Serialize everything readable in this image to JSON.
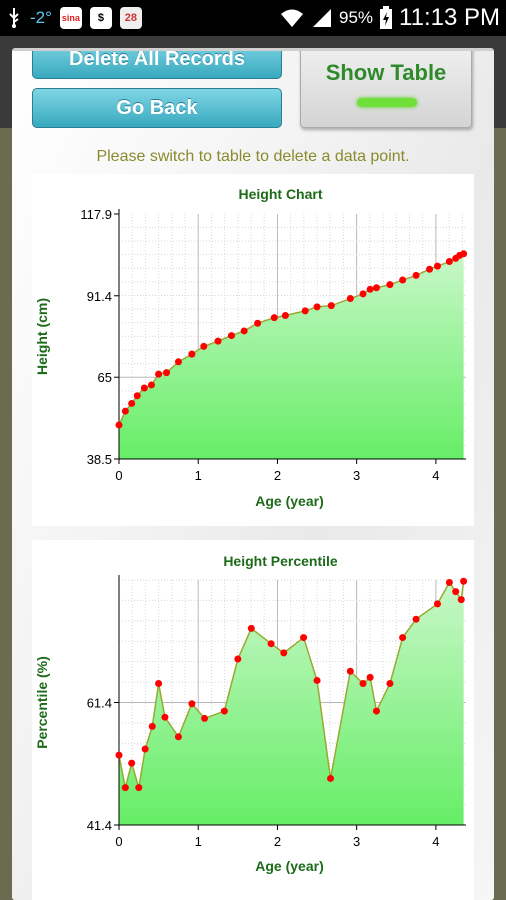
{
  "status_bar": {
    "temperature": "-2°",
    "battery": "95%",
    "time": "11:13 PM",
    "icons": [
      "usb-icon",
      "weather-icon",
      "sina-icon",
      "dollar-icon",
      "calendar-icon",
      "wifi-icon",
      "signal-icon",
      "battery-icon"
    ],
    "calendar_day": "28"
  },
  "dialog": {
    "delete_all_label": "Delete All Records",
    "go_back_label": "Go Back",
    "show_table_label": "Show Table",
    "hint": "Please switch to table to delete a data point."
  },
  "chart_data": [
    {
      "type": "area",
      "title": "Height Chart",
      "xlabel": "Age (year)",
      "ylabel": "Height (cm)",
      "xlim": [
        0,
        4.38
      ],
      "ylim": [
        38.5,
        117.9
      ],
      "x_ticks": [
        "0",
        "1",
        "2",
        "3",
        "4"
      ],
      "y_ticks": [
        "38.5",
        "65",
        "91.4",
        "117.9"
      ],
      "grid": true,
      "colors": {
        "fill_top": "#c8f7c8",
        "fill_bottom": "#66ee66",
        "line": "#99aa33",
        "point": "#ff0000"
      },
      "x": [
        0,
        0.08,
        0.16,
        0.23,
        0.32,
        0.41,
        0.5,
        0.6,
        0.75,
        0.92,
        1.07,
        1.25,
        1.42,
        1.58,
        1.75,
        1.96,
        2.1,
        2.35,
        2.5,
        2.68,
        2.92,
        3.08,
        3.17,
        3.25,
        3.42,
        3.58,
        3.75,
        3.92,
        4.02,
        4.17,
        4.25,
        4.3,
        4.35
      ],
      "y": [
        49.5,
        54,
        56.5,
        59,
        61.5,
        62.5,
        66,
        66.5,
        70,
        72.5,
        75,
        76.7,
        78.5,
        80,
        82.5,
        84.3,
        85,
        86.5,
        87.8,
        88.2,
        90.5,
        92,
        93.5,
        94,
        95,
        96.5,
        98,
        100,
        101,
        102.5,
        103.5,
        104.5,
        105
      ]
    },
    {
      "type": "area",
      "title": "Height Percentile",
      "xlabel": "Age (year)",
      "ylabel": "Percentile (%)",
      "xlim": [
        0,
        4.38
      ],
      "ylim": [
        41.4,
        81.4
      ],
      "x_ticks": [
        "0",
        "1",
        "2",
        "3",
        "4"
      ],
      "y_ticks": [
        "41.4",
        "61.4"
      ],
      "grid": true,
      "colors": {
        "fill_top": "#c8f7c8",
        "fill_bottom": "#66ee66",
        "line": "#99aa33",
        "point": "#ff0000"
      },
      "x": [
        0,
        0.08,
        0.16,
        0.25,
        0.33,
        0.42,
        0.5,
        0.58,
        0.75,
        0.92,
        1.08,
        1.33,
        1.5,
        1.67,
        1.92,
        2.08,
        2.33,
        2.5,
        2.67,
        2.92,
        3.08,
        3.17,
        3.25,
        3.42,
        3.58,
        3.75,
        4.02,
        4.17,
        4.25,
        4.32,
        4.35
      ],
      "y": [
        52.8,
        47.5,
        51.5,
        47.5,
        53.8,
        57.5,
        64.5,
        59,
        55.8,
        61.2,
        58.8,
        60,
        68.5,
        73.5,
        71,
        69.5,
        72,
        65,
        49,
        66.5,
        64.5,
        65.5,
        60,
        64.5,
        72,
        75,
        77.5,
        81,
        79.5,
        78.2,
        81.2
      ]
    }
  ]
}
